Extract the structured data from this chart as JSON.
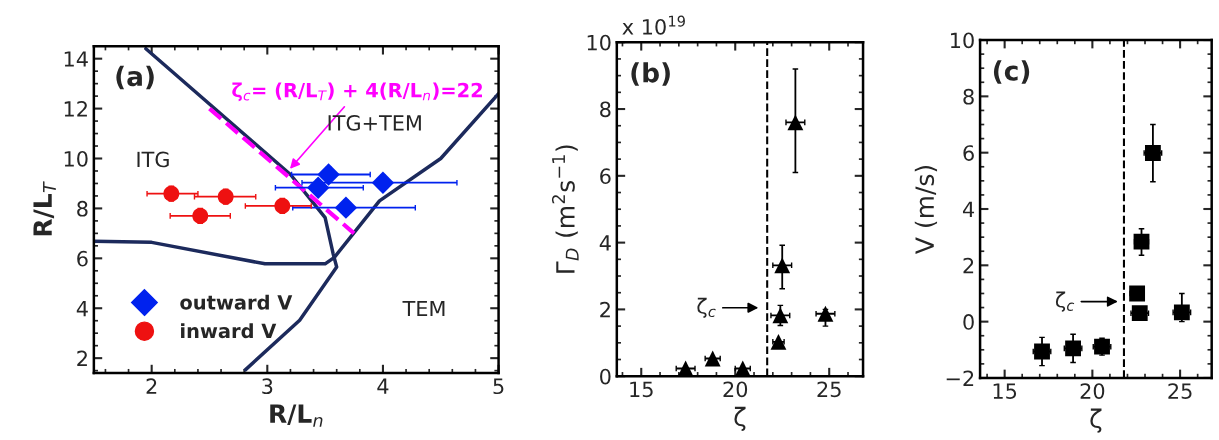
{
  "chart_data": [
    {
      "type": "scatter",
      "xlabel": "R/L$_{n}$",
      "ylabel": "R/L$_{T}$",
      "xlim": [
        1.5,
        5
      ],
      "ylim": [
        1.4,
        14.5
      ],
      "xticks": [
        2,
        3,
        4,
        5
      ],
      "yticks": [
        2,
        4,
        6,
        8,
        10,
        12,
        14
      ],
      "grid": false,
      "legend": "bottom left",
      "series": [
        {
          "type": "line",
          "color": "#1c2a5c",
          "x": [
            1.95,
            3.2,
            3.5,
            3.57,
            3.6,
            3.28,
            2.81
          ],
          "values": [
            14.4,
            9.36,
            7.63,
            6.17,
            5.65,
            3.52,
            1.53
          ]
        },
        {
          "type": "line",
          "color": "#1c2a5c",
          "x": [
            1.5,
            2.0,
            2.98,
            3.5,
            3.58,
            3.97,
            4.5,
            5.0
          ],
          "values": [
            6.68,
            6.64,
            5.78,
            5.78,
            6.04,
            8.3,
            10.0,
            12.6
          ]
        },
        {
          "type": "line",
          "color": "#ff00ff",
          "line_style": "dashed",
          "x": [
            2.5,
            3.75
          ],
          "values": [
            12,
            7
          ]
        },
        {
          "name": "outward V",
          "color": "#0022ee",
          "marker": "diamond",
          "x": [
            3.44,
            3.53,
            4.0,
            3.68
          ],
          "values": [
            8.83,
            9.36,
            9.03,
            8.03
          ],
          "xerrors": [
            [
              3.07,
              3.83
            ],
            [
              3.21,
              3.89
            ],
            [
              3.3,
              4.64
            ],
            [
              3.22,
              4.28
            ]
          ],
          "errors": [
            0.3,
            0.3,
            0.3,
            0.3
          ]
        },
        {
          "name": "inward V",
          "color": "#ee1111",
          "marker": "circle",
          "x": [
            2.17,
            2.42,
            2.64,
            3.13
          ],
          "values": [
            8.59,
            7.7,
            8.47,
            8.1
          ],
          "xerrors": [
            [
              1.96,
              2.4
            ],
            [
              2.16,
              2.68
            ],
            [
              2.37,
              2.9
            ],
            [
              2.81,
              3.38
            ]
          ],
          "errors": [
            0.3,
            0.3,
            0.3,
            0.3
          ]
        }
      ],
      "annotations": [
        "(a)",
        {
          "text": "ζ$_{c}$= (R/L$_{T}$) + 4(R/L$_{n}$)=22",
          "x": 3.18,
          "y": 9.5
        },
        "ITG",
        "ITG+TEM",
        "TEM"
      ]
    },
    {
      "type": "scatter",
      "xlabel": "ζ",
      "ylabel": "Γ$_{D}$ (m$^{2}$s$^{−1}$)",
      "xlim": [
        13.7,
        26.8
      ],
      "ylim": [
        0,
        10
      ],
      "xticks": [
        15,
        20,
        25
      ],
      "yticks": [
        0,
        2,
        4,
        6,
        8,
        10
      ],
      "grid": false,
      "ref_lines": [
        {
          "axis": "x",
          "value": 21.7,
          "line_style": "dashed",
          "color": "#000000"
        }
      ],
      "series": [
        {
          "color": "#000000",
          "marker": "triangle",
          "x": [
            17.36,
            18.8,
            20.4,
            22.3,
            22.4,
            22.5,
            23.2,
            24.8
          ],
          "values": [
            0.23,
            0.53,
            0.23,
            1.03,
            1.82,
            3.32,
            7.6,
            1.87
          ],
          "xerrors": [
            0.5,
            0.4,
            0.4,
            0.3,
            0.5,
            0.5,
            0.5,
            0.5
          ],
          "errors": [
            null,
            null,
            null,
            null,
            0.3,
            [
              2.62,
              3.92
            ],
            [
              6.1,
              9.2
            ],
            [
              1.5,
              2.0
            ]
          ]
        }
      ],
      "annotations": [
        "(b)",
        "x 10$^{19}$",
        "ζ$_{c}$"
      ]
    },
    {
      "type": "scatter",
      "xlabel": "ζ",
      "ylabel": "V (m/s)",
      "xlim": [
        13.6,
        26.8
      ],
      "ylim": [
        -2,
        10
      ],
      "xticks": [
        15,
        20,
        25
      ],
      "yticks": [
        {
          "value": -2,
          "label": "−2"
        },
        0,
        2,
        4,
        6,
        8,
        10
      ],
      "grid": false,
      "ref_lines": [
        {
          "axis": "x",
          "value": 21.8,
          "line_style": "dashed",
          "color": "#000000"
        }
      ],
      "series": [
        {
          "color": "#000000",
          "marker": "square",
          "x": [
            17.13,
            18.9,
            20.55,
            22.55,
            22.7,
            22.8,
            23.45,
            25.1
          ],
          "values": [
            -1.06,
            -0.95,
            -0.89,
            1.0,
            0.3,
            2.84,
            5.99,
            0.33
          ],
          "xerrors": [
            0.5,
            0.5,
            0.5,
            0.4,
            0.5,
            0.4,
            0.5,
            0.5
          ],
          "errors": [
            0.5,
            0.5,
            0.3,
            null,
            null,
            [
              2.36,
              3.3
            ],
            [
              4.97,
              7.0
            ],
            [
              0.0,
              1.0
            ]
          ]
        }
      ],
      "annotations": [
        "(c)",
        "ζ$_{c}$"
      ]
    }
  ]
}
